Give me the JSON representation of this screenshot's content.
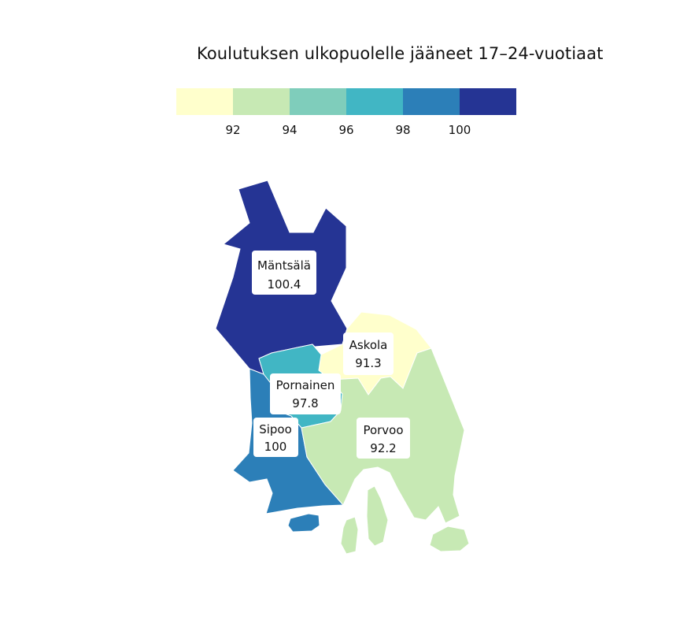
{
  "title": "Koulutuksen ulkopuolelle jääneet 17–24-vuotiaat",
  "legend": {
    "colors": [
      "#ffffcc",
      "#c7e9b4",
      "#7fcdbb",
      "#41b6c4",
      "#2c7fb8",
      "#253494"
    ],
    "ticks": [
      "92",
      "94",
      "96",
      "98",
      "100"
    ]
  },
  "regions": {
    "mantsala": {
      "name": "Mäntsälä",
      "value": "100.4",
      "color": "#253494"
    },
    "askola": {
      "name": "Askola",
      "value": "91.3",
      "color": "#ffffcc"
    },
    "pornainen": {
      "name": "Pornainen",
      "value": "97.8",
      "color": "#41b6c4"
    },
    "sipoo": {
      "name": "Sipoo",
      "value": "100",
      "color": "#2c7fb8"
    },
    "porvoo": {
      "name": "Porvoo",
      "value": "92.2",
      "color": "#c7e9b4"
    }
  }
}
